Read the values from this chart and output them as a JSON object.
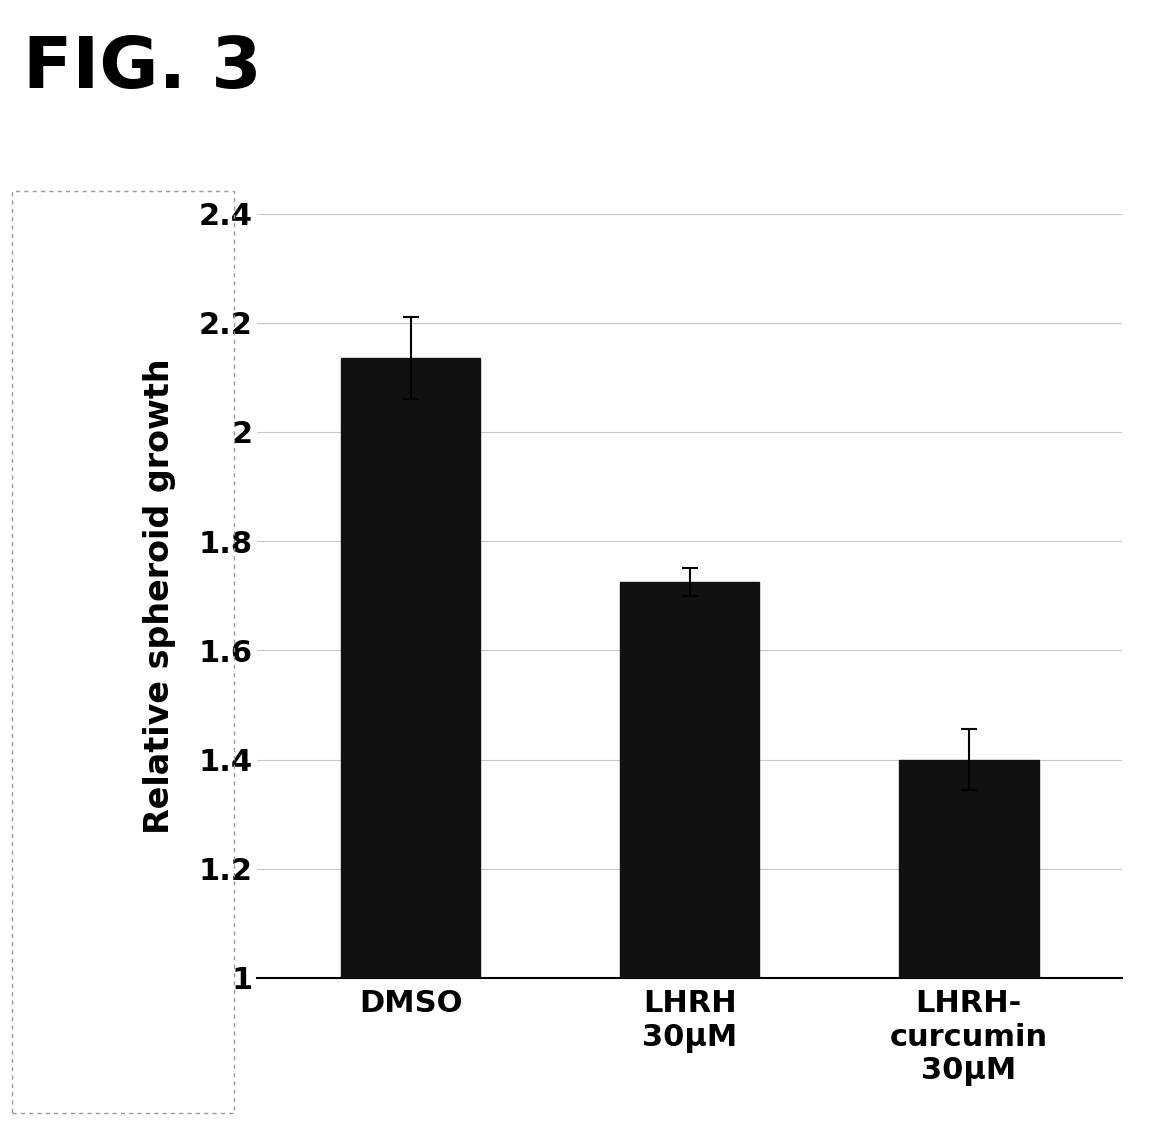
{
  "title": "FIG. 3",
  "categories": [
    "DMSO",
    "LHRH\n30μM",
    "LHRH-\ncurcumin\n30μM"
  ],
  "values": [
    2.135,
    1.725,
    1.4
  ],
  "errors": [
    0.075,
    0.025,
    0.055
  ],
  "bar_color": "#111111",
  "bar_width": 0.5,
  "ylabel": "Relative spheroid growth",
  "ylim": [
    1.0,
    2.4
  ],
  "yticks": [
    1.0,
    1.2,
    1.4,
    1.6,
    1.8,
    2.0,
    2.2,
    2.4
  ],
  "ytick_labels": [
    "1",
    "1.2",
    "1.4",
    "1.6",
    "1.8",
    "2",
    "2.2",
    "2.4"
  ],
  "background_color": "#ffffff",
  "grid_color": "#c8c8c8",
  "title_fontsize": 52,
  "ylabel_fontsize": 24,
  "tick_fontsize": 22,
  "xlabel_fontsize": 22,
  "fig_width": 11.69,
  "fig_height": 11.24
}
